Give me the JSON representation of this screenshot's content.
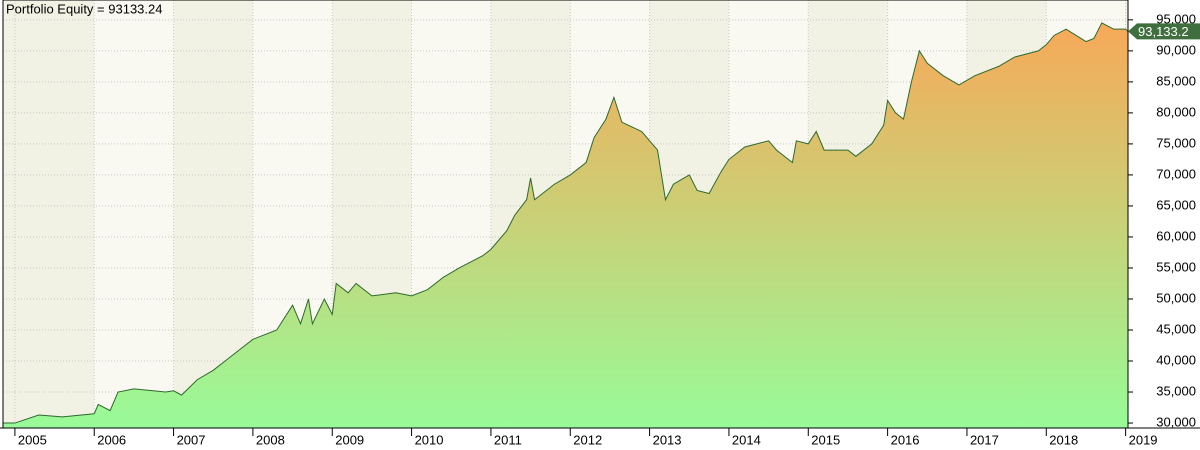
{
  "chart_data": {
    "type": "area",
    "title": "Portfolio Equity = 93133.24",
    "x": [
      2004.85,
      2005.0,
      2005.3,
      2005.6,
      2006.0,
      2006.05,
      2006.2,
      2006.3,
      2006.5,
      2006.9,
      2007.0,
      2007.1,
      2007.3,
      2007.5,
      2007.7,
      2007.9,
      2008.0,
      2008.3,
      2008.5,
      2008.6,
      2008.7,
      2008.75,
      2008.9,
      2009.0,
      2009.05,
      2009.2,
      2009.3,
      2009.5,
      2009.8,
      2010.0,
      2010.2,
      2010.4,
      2010.6,
      2010.9,
      2011.0,
      2011.2,
      2011.3,
      2011.45,
      2011.5,
      2011.55,
      2011.8,
      2012.0,
      2012.2,
      2012.3,
      2012.45,
      2012.55,
      2012.65,
      2012.9,
      2013.1,
      2013.15,
      2013.2,
      2013.3,
      2013.5,
      2013.6,
      2013.75,
      2013.9,
      2014.0,
      2014.2,
      2014.5,
      2014.6,
      2014.8,
      2014.85,
      2015.0,
      2015.1,
      2015.2,
      2015.5,
      2015.6,
      2015.8,
      2015.95,
      2016.0,
      2016.1,
      2016.2,
      2016.3,
      2016.4,
      2016.5,
      2016.7,
      2016.9,
      2017.1,
      2017.4,
      2017.6,
      2017.9,
      2018.0,
      2018.1,
      2018.25,
      2018.5,
      2018.6,
      2018.7,
      2018.85,
      2019.0,
      2019.03
    ],
    "values": [
      30000,
      30000,
      31300,
      31000,
      31500,
      33000,
      32000,
      35000,
      35500,
      35000,
      35200,
      34500,
      37000,
      38500,
      40500,
      42500,
      43500,
      45000,
      49000,
      46000,
      50000,
      46000,
      50000,
      47500,
      52500,
      51000,
      52500,
      50500,
      51000,
      50500,
      51500,
      53500,
      55000,
      57000,
      58000,
      61000,
      63500,
      66000,
      69500,
      66000,
      68500,
      70000,
      72000,
      76000,
      79000,
      82500,
      78500,
      77000,
      74000,
      70000,
      66000,
      68500,
      70000,
      67500,
      67000,
      70500,
      72500,
      74500,
      75500,
      74000,
      72000,
      75500,
      75000,
      77000,
      74000,
      74000,
      73000,
      75000,
      78000,
      82000,
      80000,
      79000,
      85000,
      90000,
      88000,
      86000,
      84500,
      86000,
      87500,
      89000,
      90000,
      91000,
      92500,
      93500,
      91500,
      92000,
      94500,
      93500,
      93500,
      93133.24
    ],
    "color": "#2d6a2d",
    "fill_gradient": [
      "#f8a858",
      "#98fb98"
    ],
    "last_value_label": "93,133.2",
    "xlim": [
      2004.85,
      2019.03
    ],
    "ylim": [
      29200,
      98200
    ],
    "xticks": [
      2005,
      2006,
      2007,
      2008,
      2009,
      2010,
      2011,
      2012,
      2013,
      2014,
      2015,
      2016,
      2017,
      2018,
      2019
    ],
    "yticks": [
      {
        "value": 30000,
        "label": "30,000"
      },
      {
        "value": 35000,
        "label": "35,000"
      },
      {
        "value": 40000,
        "label": "40,000"
      },
      {
        "value": 45000,
        "label": "45,000"
      },
      {
        "value": 50000,
        "label": "50,000"
      },
      {
        "value": 55000,
        "label": "55,000"
      },
      {
        "value": 60000,
        "label": "60,000"
      },
      {
        "value": 65000,
        "label": "65,000"
      },
      {
        "value": 70000,
        "label": "70,000"
      },
      {
        "value": 75000,
        "label": "75,000"
      },
      {
        "value": 80000,
        "label": "80,000"
      },
      {
        "value": 85000,
        "label": "85,000"
      },
      {
        "value": 90000,
        "label": "90,000"
      },
      {
        "value": 95000,
        "label": "95,000"
      }
    ],
    "grid": true
  }
}
